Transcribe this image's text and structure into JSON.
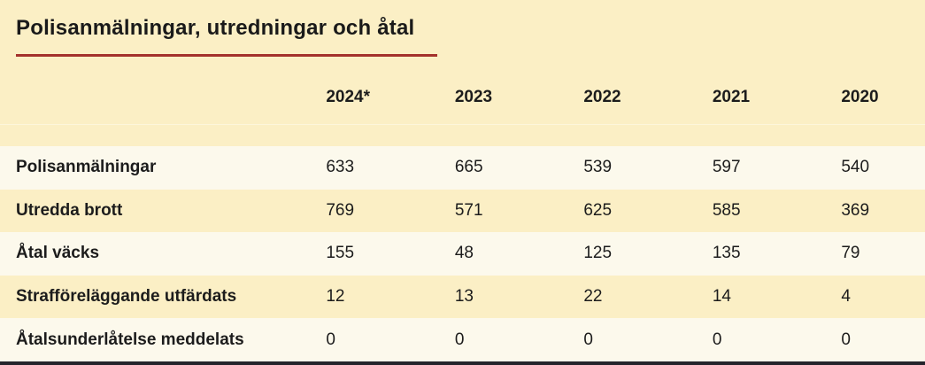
{
  "colors": {
    "background": "#FBEFC5",
    "row_light": "#FCF9EC",
    "title_rule_red": "#A4322C",
    "text": "#1C1C1C",
    "bottom_bar": "#24242C"
  },
  "chart_data": {
    "type": "table",
    "title": "Polisanmälningar, utredningar och åtal",
    "categories": [
      "2024*",
      "2023",
      "2022",
      "2021",
      "2020"
    ],
    "series": [
      {
        "name": "Polisanmälningar",
        "values": [
          633,
          665,
          539,
          597,
          540
        ]
      },
      {
        "name": "Utredda brott",
        "values": [
          769,
          571,
          625,
          585,
          369
        ]
      },
      {
        "name": "Åtal väcks",
        "values": [
          155,
          48,
          125,
          135,
          79
        ]
      },
      {
        "name": "Strafföreläggande utfärdats",
        "values": [
          12,
          13,
          22,
          14,
          4
        ]
      },
      {
        "name": "Åtalsunderlåtelse meddelats",
        "values": [
          0,
          0,
          0,
          0,
          0
        ]
      }
    ],
    "layout": {
      "legend": "none",
      "grid": "row-stripes",
      "header_position": "top"
    }
  }
}
